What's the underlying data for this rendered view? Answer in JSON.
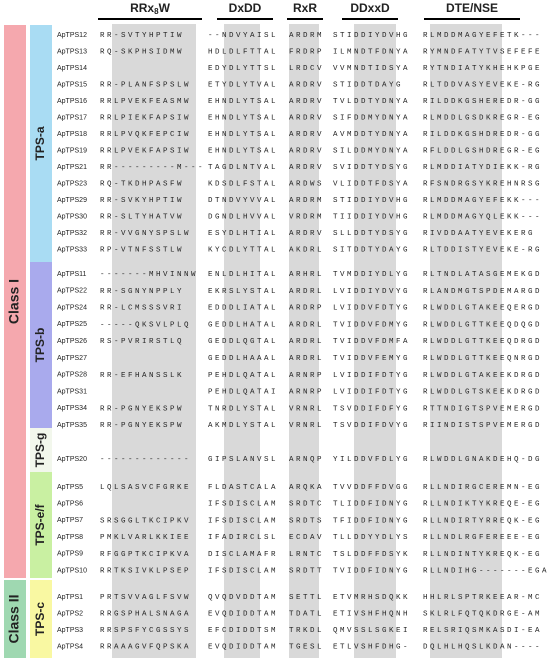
{
  "motifs": [
    {
      "pre": "RRx",
      "sub": "8",
      "post": "W"
    },
    "DxDD",
    "RxR",
    "DDxxD",
    "DTE/NSE"
  ],
  "classes": [
    {
      "label": "Class I",
      "groups": [
        0,
        1,
        2,
        3
      ]
    },
    {
      "label": "Class II",
      "groups": [
        4
      ]
    }
  ],
  "groups": [
    {
      "label": "TPS-a",
      "rows": [
        {
          "name": "ApTPS12",
          "segments": [
            "RR-SVTYHPTIW",
            "--NDVYAISL",
            "ARDRM",
            "STIDDIYDVHG",
            "RLMDDMAGYEFETK---"
          ]
        },
        {
          "name": "ApTPS13",
          "segments": [
            "RQ-SKPHSIDMW",
            "HDLDLFTTAL",
            "FRDRP",
            "ILMNDTFDNYA",
            "RYMNDFATYTVSEFEFE"
          ]
        },
        {
          "name": "ApTPS14",
          "segments": [
            null,
            "EDYDLYTTSL",
            "LRDCV",
            "VVMNDTIDSYA",
            "RYTNDIATYKHEHKPGE"
          ]
        },
        {
          "name": "ApTPS15",
          "segments": [
            "RR-PLANFSPSLW",
            "ETYDLYTVAL",
            "ARDRV",
            "STIDDTDAYG",
            "RLTDDVASYEVEKE-RG"
          ]
        },
        {
          "name": "ApTPS16",
          "segments": [
            "RRLPVEKFEASMW",
            "EHNDLYTSAL",
            "ARDRV",
            "TVLDDTYDNYA",
            "RILDDKGSHEREDR-GG"
          ]
        },
        {
          "name": "ApTPS17",
          "segments": [
            "RRLPIEKFAPSIW",
            "EHNDLYTSAL",
            "ARDRV",
            "SIFDDMYDNYA",
            "RLMDDLGSDKREGR-EG"
          ]
        },
        {
          "name": "ApTPS18",
          "segments": [
            "RRLPVQKFEPCIW",
            "EHNDLYTSAL",
            "ARDRV",
            "AVMDDTYDNYA",
            "RILDDKGSHDREDR-GG"
          ]
        },
        {
          "name": "ApTPS19",
          "segments": [
            "RRLPVEKFAPSIW",
            "EHNDLYTSAL",
            "ARDRV",
            "SILDDMYDNYA",
            "RFLDDLGSHDREGR-EG"
          ]
        },
        {
          "name": "ApTPS21",
          "segments": [
            "RR---------M---",
            "TAGDLNTVAL",
            "ARDRV",
            "SVIDDTYDSYG",
            "RLMDDIATYDIEKK-RG"
          ]
        },
        {
          "name": "ApTPS23",
          "segments": [
            "RQ-TKDHPASFW",
            "KDSDLFSTAL",
            "ARDWS",
            "VLIDDTFDSYA",
            "RFSNDRGSYKREHNRSG"
          ]
        },
        {
          "name": "ApTPS29",
          "segments": [
            "RR-SVKYHPTIW",
            "DTNDVYVVAL",
            "ARDRM",
            "STIDDIYDVHG",
            "RLMDDMAGYEFEKK---"
          ]
        },
        {
          "name": "ApTPS30",
          "segments": [
            "RR-SLTYHATVW",
            "DGNDLHVVAL",
            "VRDRM",
            "TIIDDIYDVHG",
            "RLMDDMAGYQLEKK---"
          ]
        },
        {
          "name": "ApTPS32",
          "segments": [
            "RR-VVGNYSPSLW",
            "ESYDLHTIAL",
            "ARDRV",
            "SLLDDTYDSYG",
            "RIVDDAATYEVEKERG"
          ]
        },
        {
          "name": "ApTPS33",
          "segments": [
            "RP-VTNFSSTLW",
            "KYCDLYTTAL",
            "AKDRL",
            "SITDDTYDAYG",
            "RLTDDISTYEVEKE-RG"
          ]
        }
      ]
    },
    {
      "label": "TPS-b",
      "rows": [
        {
          "name": "ApTPS11",
          "segments": [
            "-------MHVINNW",
            "ENLDLHITAL",
            "ARHRL",
            "TVMDDIYDLYG",
            "RLTNDLATASGEMEKGD"
          ]
        },
        {
          "name": "ApTPS22",
          "segments": [
            "RR-SGNYNPPLY",
            "EKRSLYSTAL",
            "ARDRL",
            "LVIDDIYDVYG",
            "RLANDMGTSPDEMARGD"
          ]
        },
        {
          "name": "ApTPS24",
          "segments": [
            "RR-LCMSSSVRI",
            "EDDDLIATAL",
            "ARDRP",
            "LVIDDVFDTYG",
            "RLWDDLGTAKEEQERGD"
          ]
        },
        {
          "name": "ApTPS25",
          "segments": [
            "-----QKSVLPLQ",
            "GEDDLHATAL",
            "ARDRL",
            "TVIDDVFDMYG",
            "RLWDDLGTTKEEQDQGD"
          ]
        },
        {
          "name": "ApTPS26",
          "segments": [
            "RS-PVRIRSTLQ",
            "GEDDLQGTAL",
            "ARDRL",
            "TVIDDVFDMFA",
            "RLWDDLGTTKEEQDRGD"
          ]
        },
        {
          "name": "ApTPS27",
          "segments": [
            null,
            "GEDDLHAAAL",
            "ARDRL",
            "TVIDDVFEMYG",
            "RLWDDLGTTKEEQNRGD"
          ]
        },
        {
          "name": "ApTPS28",
          "segments": [
            "RR-EFHANSSLK",
            "PEHDLQATAL",
            "ARNRP",
            "LVIDDIFDTYG",
            "RLWDDLGTAKEEKDRGD"
          ]
        },
        {
          "name": "ApTPS31",
          "segments": [
            null,
            "PEHDLQATAI",
            "ARNRP",
            "LVIDDIFDTYG",
            "RLWDDLGTSKEEKDRGD"
          ]
        },
        {
          "name": "ApTPS34",
          "segments": [
            "RR-PGNYEKSPW",
            "TNRDLYSTAL",
            "VRNRL",
            "TSVDDIFDFYG",
            "RTTNDIGTSPVEMERGD"
          ]
        },
        {
          "name": "ApTPS35",
          "segments": [
            "RR-PGNYEKSPW",
            "AKMDLYSTAL",
            "VRNRL",
            "TSVDDIFDVYG",
            "RIINDISTSPVEMERGD"
          ]
        }
      ]
    },
    {
      "label": "TPS-g",
      "rows": [
        {
          "name": "ApTPS20",
          "segments": [
            "-------------",
            "GIPSLANVSL",
            "ARNQP",
            "YILDDVFDLYG",
            "RLWDDLGNAKDEHQ-DG"
          ]
        }
      ]
    },
    {
      "label": "TPS-e/f",
      "rows": [
        {
          "name": "ApTPS5",
          "segments": [
            "LQLSASVCFGRKE",
            "FLDASTCALA",
            "ARQKA",
            "TVVDDFFDVGG",
            "RLLNDIRGCEREMN-EG"
          ]
        },
        {
          "name": "ApTPS6",
          "segments": [
            null,
            "IFSDISCLAM",
            "SRDTC",
            "TLIDDFIDNYG",
            "RLLNDIKTYKREQE-EG"
          ]
        },
        {
          "name": "ApTPS7",
          "segments": [
            "SRSGGLTKCIPKV",
            "IFSDISCLAM",
            "SRDTS",
            "TFIDDFIDNYG",
            "RLLNDIRTYRREQK-EG"
          ]
        },
        {
          "name": "ApTPS8",
          "segments": [
            "PMKLVARLKKIEE",
            "IFADIRCLSL",
            "ECDAV",
            "TLLDDYYDLYS",
            "RLLNDLRGFEREEE-EG"
          ]
        },
        {
          "name": "ApTPS9",
          "segments": [
            "RFGGPTKCIPKVA",
            "DISCLAMAFR",
            "LRNTC",
            "TSLDDFFDSYK",
            "RLLNDINTYKREQK-EG"
          ]
        },
        {
          "name": "ApTPS10",
          "segments": [
            "RRTKSIVKLPSEP",
            "IFSDISCLAM",
            "SRDTT",
            "TVIDDFIDNYG",
            "RLLNDIHG-------EGA-E"
          ]
        }
      ]
    },
    {
      "label": "TPS-c",
      "rows": [
        {
          "name": "ApTPS1",
          "segments": [
            "PRTSVVAGLFSVW",
            "QVQDVDDTAM",
            "SETTL",
            "ETVMRHSDQKK",
            "HHLRLSPTRKEEAR-MC"
          ]
        },
        {
          "name": "ApTPS2",
          "segments": [
            "RRGSPHALSNAGA",
            "EVQDIDDTAM",
            "TDATL",
            "ETIVSHFHQNH",
            "SKLRLFQTQKDRGE-AM"
          ]
        },
        {
          "name": "ApTPS3",
          "segments": [
            "RRSPSFYCGSSYS",
            "EFCDIDDTSM",
            "TRKDL",
            "QMVSSLSGKEI",
            "RELSRIQSMKASDI-EA"
          ]
        },
        {
          "name": "ApTPS4",
          "segments": [
            "RRAAAGVFQPSKA",
            "EVQDIDDTAM",
            "TGESL",
            "ETLVSHFDHG-",
            "DQLHLHQSLKDAN----"
          ]
        }
      ]
    }
  ]
}
